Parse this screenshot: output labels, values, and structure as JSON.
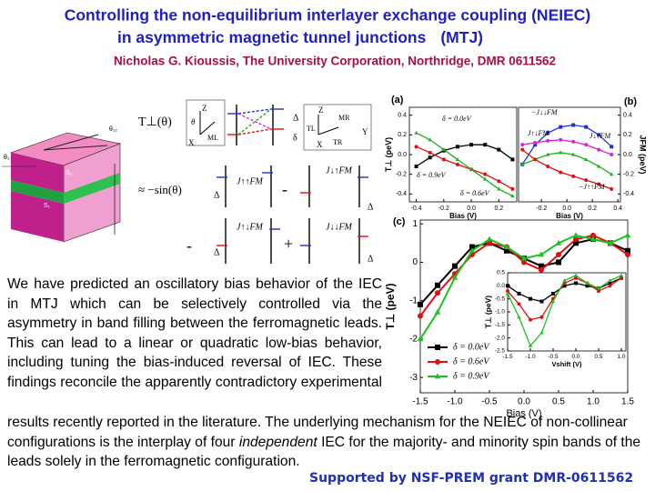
{
  "header": {
    "title_line1": "Controlling the non-equilibrium interlayer exchange coupling (NEIEC)",
    "title_line2": "in asymmetric magnetic tunnel junctions",
    "title_tag": "(MTJ)",
    "author": "Nicholas G. Kioussis, The University Corporation, Northridge, DMR 0611562"
  },
  "body": {
    "paragraph_part1": "We have predicted an oscillatory bias behavior of the IEC in MTJ which can be selectively controlled via the asymmetry in band filling between the ferromagnetic leads. This can lead to a linear or quadratic low-bias behavior, including tuning the bias-induced reversal of IEC. These findings reconcile the apparently contradictory experimental",
    "paragraph_part2": "results recently reported in the literature. The underlying mechanism for the NEIEC of non-collinear configurations is the interplay of four",
    "paragraph_emphasis": "independent",
    "paragraph_part3": "IEC for the majority- and minority spin bands of the leads solely in the ferromagnetic configuration."
  },
  "footer": {
    "support": "Supported by NSF-PREM grant DMR-0611562"
  },
  "diagram": {
    "junction_labels": [
      "θ₁₂",
      "θ₁",
      "S₂",
      "S₁"
    ],
    "lhs": "T⊥(θ)",
    "rhs": "≈ −sin(θ)",
    "ops": [
      "-",
      "-",
      "+"
    ],
    "j_terms": [
      "J↑↑FM",
      "J↓↑FM",
      "J↑↓FM",
      "J↓↓FM"
    ],
    "delta": "Δ",
    "small_delta": "δ",
    "axes": [
      "Z",
      "X",
      "Y"
    ],
    "theta": "θ",
    "moments": [
      "ML",
      "MR"
    ],
    "torques": [
      "TL",
      "TR"
    ]
  },
  "chart_data": [
    {
      "type": "line",
      "panel_label": "(a)",
      "x_label": "Bias (V)",
      "y_label": "T⊥ (peV)",
      "x": [
        -0.4,
        -0.3,
        -0.2,
        -0.1,
        0,
        0.1,
        0.2,
        0.3
      ],
      "xlim": [
        -0.45,
        0.33
      ],
      "xticks": [
        -0.4,
        -0.2,
        {
          "value": 0,
          "label": "0.0"
        },
        0.2
      ],
      "ylim": [
        -0.48,
        0.48
      ],
      "yticks": [
        0.4,
        0.2,
        {
          "value": 0,
          "label": "0.0"
        },
        -0.2,
        -0.4
      ],
      "legend": "inline",
      "series": [
        {
          "name": "δ = 0.0eV",
          "color": "#000000",
          "marker": "square",
          "values": [
            -0.12,
            -0.03,
            0.04,
            0.08,
            0.1,
            0.1,
            0.05,
            -0.05
          ]
        },
        {
          "name": "δ = 0.6eV",
          "color": "#e01010",
          "marker": "circle",
          "values": [
            0.08,
            0.02,
            -0.05,
            -0.1,
            -0.15,
            -0.2,
            -0.27,
            -0.35
          ]
        },
        {
          "name": "δ = 0.9eV",
          "color": "#20b020",
          "marker": "triangle",
          "values": [
            0.22,
            0.15,
            0.05,
            -0.05,
            -0.15,
            -0.25,
            -0.35,
            -0.42
          ]
        }
      ]
    },
    {
      "type": "line",
      "panel_label": "(b)",
      "x_label": "Bias (V)",
      "y_label": "JFM (peV)",
      "y_axis_side": "right",
      "x": [
        -0.35,
        -0.25,
        -0.15,
        -0.05,
        0.05,
        0.15,
        0.25,
        0.35
      ],
      "xlim": [
        -0.38,
        0.42
      ],
      "xticks": [
        -0.2,
        {
          "value": 0,
          "label": "0.0"
        },
        0.2,
        0.4
      ],
      "ylim": [
        -0.48,
        0.48
      ],
      "yticks": [
        0.4,
        0.2,
        {
          "value": 0,
          "label": "0.0"
        },
        -0.2,
        -0.4
      ],
      "legend": "inline",
      "series": [
        {
          "name": "−J↓↓FM",
          "color": "#2030d0",
          "marker": "square",
          "values": [
            -0.1,
            0.1,
            0.22,
            0.28,
            0.3,
            0.28,
            0.2,
            0.08
          ]
        },
        {
          "name": "J↑↓FM",
          "color": "#e020e0",
          "marker": "circle",
          "values": [
            0.1,
            0.12,
            0.14,
            0.15,
            0.13,
            0.1,
            0.05,
            0
          ]
        },
        {
          "name": "J↓↑FM",
          "color": "#20b020",
          "marker": "triangle",
          "values": [
            -0.1,
            -0.05,
            0,
            0.02,
            0,
            -0.05,
            -0.12,
            -0.2
          ]
        },
        {
          "name": "−J↑↑FM",
          "color": "#e01010",
          "marker": "circle",
          "values": [
            0.05,
            -0.05,
            -0.12,
            -0.18,
            -0.22,
            -0.26,
            -0.3,
            -0.35
          ]
        }
      ]
    },
    {
      "type": "line",
      "panel_label": "(c)",
      "x_label": "Bias (V)",
      "y_label": "T⊥ (peV)",
      "x": [
        -1.5,
        -1.25,
        -1,
        -0.75,
        -0.5,
        -0.25,
        0,
        0.25,
        0.5,
        0.75,
        1,
        1.25,
        1.5
      ],
      "xlim": [
        -1.5,
        1.5
      ],
      "xticks": [
        -1.5,
        {
          "value": -1,
          "label": "-1.0"
        },
        -0.5,
        {
          "value": 0,
          "label": "0.0"
        },
        0.5,
        {
          "value": 1,
          "label": "1.0"
        },
        1.5
      ],
      "ylim": [
        -3.4,
        1.1
      ],
      "yticks": [
        1,
        0,
        -1,
        -2,
        -3
      ],
      "legend": "lower left",
      "series": [
        {
          "name": "δ = 0.0eV",
          "color": "#000000",
          "marker": "square",
          "values": [
            -1.1,
            -0.6,
            -0.1,
            0.4,
            0.5,
            0.3,
            0.1,
            -0.1,
            0,
            0.5,
            0.6,
            0.5,
            0.3
          ]
        },
        {
          "name": "δ = 0.6eV",
          "color": "#e01010",
          "marker": "circle",
          "values": [
            -1.4,
            -0.8,
            -0.3,
            0.2,
            0.5,
            0.4,
            0,
            -0.2,
            0.2,
            0.6,
            0.7,
            0.5,
            0.2
          ]
        },
        {
          "name": "δ = 0.9eV",
          "color": "#20c020",
          "marker": "triangle",
          "values": [
            -2,
            -1.3,
            -0.4,
            0.3,
            0.6,
            0.4,
            0.1,
            0.2,
            0.5,
            0.7,
            0.6,
            0.5,
            0.7
          ]
        }
      ]
    },
    {
      "type": "line",
      "inset": true,
      "x_label": "Vshift (V)",
      "y_label": "T⊥ (peV)",
      "x": [
        -1.5,
        -1.25,
        -1,
        -0.75,
        -0.5,
        -0.25,
        0,
        0.25,
        0.5,
        0.75,
        1
      ],
      "xlim": [
        -1.5,
        1.1
      ],
      "xticks": [
        -1.5,
        {
          "value": -1,
          "label": "-1.0"
        },
        -0.5,
        {
          "value": 0,
          "label": "0.0"
        },
        0.5,
        {
          "value": 1,
          "label": "1.0"
        }
      ],
      "ylim": [
        -2.5,
        0.5
      ],
      "yticks": [
        0.5,
        {
          "value": 0,
          "label": "0.0"
        },
        -0.5,
        {
          "value": -1,
          "label": "-1.0"
        },
        -1.5,
        {
          "value": -2,
          "label": "-2.0"
        },
        -2.5
      ],
      "series": [
        {
          "color": "#000000",
          "marker": "square",
          "values": [
            0,
            -0.3,
            -0.5,
            -0.6,
            -0.3,
            0,
            0.1,
            0,
            -0.1,
            0.1,
            0.3
          ]
        },
        {
          "color": "#e01010",
          "marker": "circle",
          "values": [
            -0.2,
            -0.7,
            -1.3,
            -1.2,
            -0.5,
            0.1,
            0.3,
            0.1,
            -0.2,
            0,
            0.3
          ]
        },
        {
          "color": "#20c020",
          "marker": "triangle",
          "values": [
            -0.3,
            -1.2,
            -2.3,
            -1.8,
            -0.6,
            0.2,
            0.4,
            0.1,
            -0.1,
            0.2,
            0.4
          ]
        }
      ]
    }
  ]
}
